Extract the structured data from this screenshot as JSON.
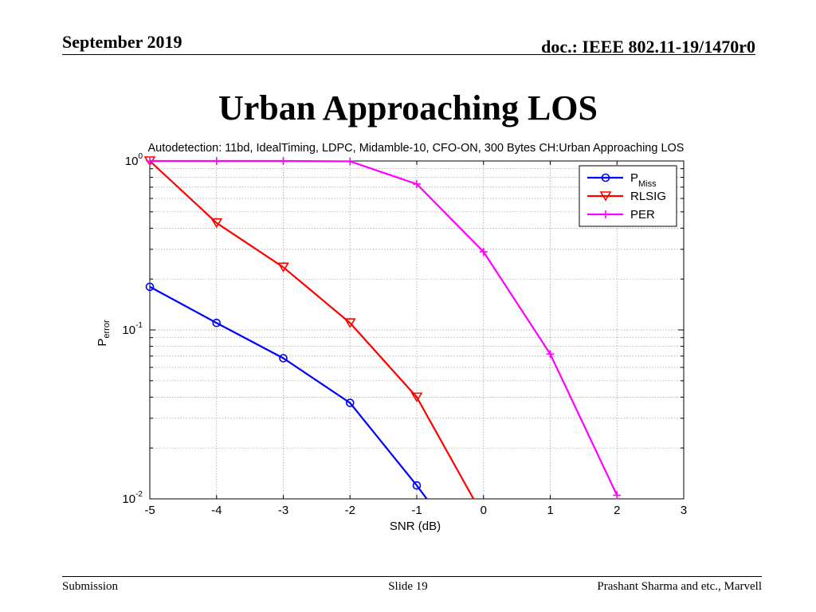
{
  "header": {
    "date": "September 2019",
    "doc_id": "doc.: IEEE 802.11-19/1470r0"
  },
  "slide_title": "Urban Approaching LOS",
  "footer": {
    "left": "Submission",
    "center": "Slide 19",
    "right": "Prashant Sharma and etc., Marvell"
  },
  "colors": {
    "pmiss": "#0000ff",
    "rlsig": "#ff0000",
    "per": "#ff00ff"
  },
  "chart_data": {
    "type": "line",
    "title": "Autodetection: 11bd, IdealTiming, LDPC, Midamble-10, CFO-ON, 300 Bytes CH:Urban Approaching LOS",
    "xlabel": "SNR (dB)",
    "ylabel": "P",
    "ylabel_sub": "error",
    "xlim": [
      -5,
      3
    ],
    "ylim": [
      0.01,
      1
    ],
    "yscale": "log",
    "grid": true,
    "legend_position": "top-right",
    "x_ticks": [
      "-5",
      "-4",
      "-3",
      "-2",
      "-1",
      "0",
      "1",
      "2",
      "3"
    ],
    "y_ticks": [
      {
        "value": 1,
        "base": "10",
        "exp": "0"
      },
      {
        "value": 0.1,
        "base": "10",
        "exp": "-1"
      },
      {
        "value": 0.01,
        "base": "10",
        "exp": "-2"
      }
    ],
    "series": [
      {
        "key": "pmiss",
        "name": "P",
        "name_sub": "Miss",
        "marker": "circle",
        "x": [
          -5,
          -4,
          -3,
          -2,
          -1,
          -0.85
        ],
        "y": [
          0.18,
          0.11,
          0.068,
          0.037,
          0.012,
          0.01
        ],
        "markers": [
          true,
          true,
          true,
          true,
          true,
          false
        ]
      },
      {
        "key": "rlsig",
        "name": "RLSIG",
        "name_sub": "",
        "marker": "triangle-down",
        "x": [
          -5,
          -4,
          -3,
          -2,
          -1,
          -0.15
        ],
        "y": [
          1.0,
          0.43,
          0.235,
          0.11,
          0.04,
          0.01
        ],
        "markers": [
          true,
          true,
          true,
          true,
          true,
          false
        ]
      },
      {
        "key": "per",
        "name": "PER",
        "name_sub": "",
        "marker": "plus",
        "x": [
          -5,
          -4,
          -3,
          -2,
          -1,
          0,
          1,
          2
        ],
        "y": [
          1.0,
          1.0,
          1.0,
          0.995,
          0.73,
          0.29,
          0.072,
          0.0105
        ],
        "markers": [
          true,
          true,
          true,
          true,
          true,
          true,
          true,
          true
        ]
      }
    ]
  }
}
